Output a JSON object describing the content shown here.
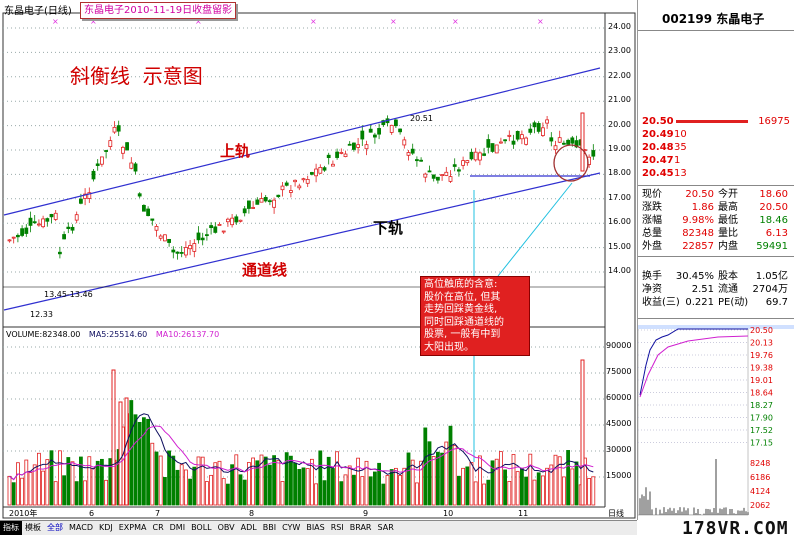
{
  "header": {
    "stock_title": "东晶电子(日线)",
    "caption": "东晶电子2010-11-19日收盘留影"
  },
  "annotations": {
    "main_title": "斜衡线  示意图",
    "upper_rail": "上轨",
    "lower_rail": "下轨",
    "channel_line": "通道线",
    "peak_label": "20.51",
    "range_label": "13.45-13.46",
    "low_label": "12.33",
    "note_lines": [
      "高位触底的含意:",
      "股价在高位, 但其",
      "走势回踩黄金线,",
      "同时回踩通道线的",
      "股票, 一般有中到",
      "大阳出现。"
    ]
  },
  "price_axis": [
    "24.00",
    "23.00",
    "22.00",
    "21.00",
    "20.00",
    "19.00",
    "18.00",
    "17.00",
    "16.00",
    "15.00",
    "14.00"
  ],
  "volume_header": {
    "volume": "VOLUME:82348.00",
    "ma5": "MA5:25514.60",
    "ma10": "MA10:26137.70"
  },
  "volume_axis": [
    "90000",
    "75000",
    "60000",
    "45000",
    "30000",
    "15000"
  ],
  "date_axis": {
    "year": "2010年",
    "months": [
      "6",
      "7",
      "8",
      "9",
      "10",
      "11"
    ],
    "period": "日线"
  },
  "bottom_tabs": [
    "指标",
    "模板",
    "全部",
    "MACD",
    "KDJ",
    "EXPMA",
    "CR",
    "DMI",
    "BOLL",
    "OBV",
    "ADL",
    "BBI",
    "CYW",
    "BIAS",
    "RSI",
    "BRAR",
    "SAR"
  ],
  "quote": {
    "code_name": "002199 东晶电子",
    "orders": [
      {
        "price": "20.50",
        "vol": "16975"
      },
      {
        "price": "20.49",
        "vol": "10"
      },
      {
        "price": "20.48",
        "vol": "35"
      },
      {
        "price": "20.47",
        "vol": "1"
      },
      {
        "price": "20.45",
        "vol": "13"
      }
    ],
    "stats": [
      {
        "l1": "现价",
        "v1": "20.50",
        "l2": "今开",
        "v2": "18.60"
      },
      {
        "l1": "涨跌",
        "v1": "1.86",
        "l2": "最高",
        "v2": "20.50"
      },
      {
        "l1": "涨幅",
        "v1": "9.98%",
        "l2": "最低",
        "v2": "18.46"
      },
      {
        "l1": "总量",
        "v1": "82348",
        "l2": "量比",
        "v2": "6.13"
      },
      {
        "l1": "外盘",
        "v1": "22857",
        "l2": "内盘",
        "v2": "59491"
      }
    ],
    "stats2": [
      {
        "l1": "换手",
        "v1": "30.45%",
        "l2": "股本",
        "v2": "1.05亿"
      },
      {
        "l1": "净资",
        "v1": "2.51",
        "l2": "流通",
        "v2": "2704万"
      },
      {
        "l1": "收益(三)",
        "v1": "0.221",
        "l2": "PE(动)",
        "v2": "69.7"
      }
    ],
    "mini_price_axis": [
      "20.50",
      "20.13",
      "19.76",
      "19.38",
      "19.01",
      "18.64",
      "18.27",
      "17.90",
      "17.52",
      "17.15"
    ],
    "mini_vol_axis": [
      "8248",
      "6186",
      "4124",
      "2062"
    ]
  },
  "watermark": "178VR.COM"
}
